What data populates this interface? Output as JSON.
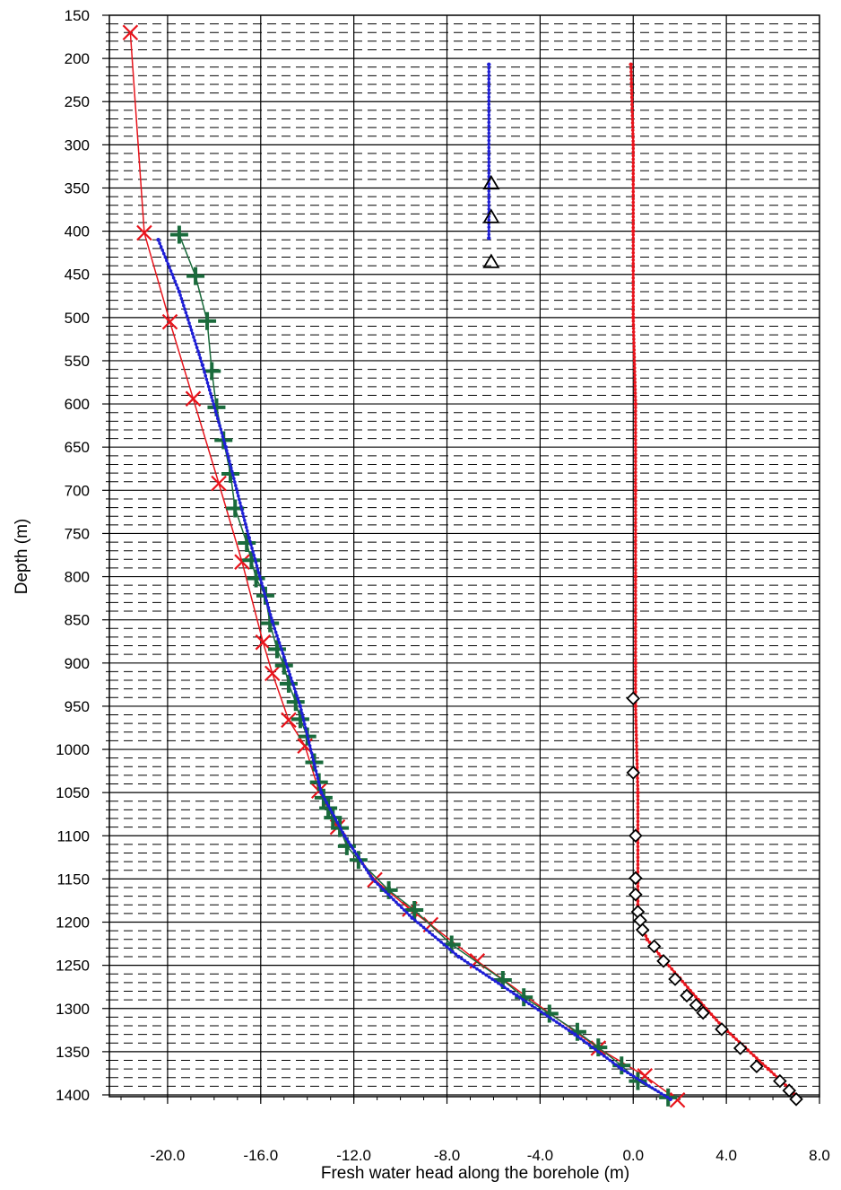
{
  "chart_data": {
    "type": "line",
    "xlabel": "Fresh water head along the borehole (m)",
    "ylabel": "Depth (m)",
    "xlim": [
      -22.5,
      8.0
    ],
    "ylim": [
      150,
      1400
    ],
    "y_inverted": true,
    "grid": true,
    "x_ticks": [
      -20.0,
      -16.0,
      -12.0,
      -8.0,
      -4.0,
      0.0,
      4.0,
      8.0
    ],
    "x_tick_labels": [
      "-20.0",
      "-16.0",
      "-12.0",
      "-8.0",
      "-4.0",
      "0.0",
      "4.0",
      "8.0"
    ],
    "y_ticks": [
      150,
      200,
      250,
      300,
      350,
      400,
      450,
      500,
      550,
      600,
      650,
      700,
      750,
      800,
      850,
      900,
      950,
      1000,
      1050,
      1100,
      1150,
      1200,
      1250,
      1300,
      1350,
      1400
    ],
    "series": [
      {
        "color": "#e8141c",
        "marker": "x",
        "points": [
          [
            -21.6,
            170
          ],
          [
            -21.0,
            402
          ],
          [
            -19.9,
            505
          ],
          [
            -18.9,
            594
          ],
          [
            -17.8,
            692
          ],
          [
            -16.8,
            783
          ],
          [
            -15.9,
            876
          ],
          [
            -15.5,
            912
          ],
          [
            -14.8,
            966
          ],
          [
            -14.1,
            996
          ],
          [
            -13.5,
            1048
          ],
          [
            -12.7,
            1090
          ],
          [
            -11.1,
            1151
          ],
          [
            -9.6,
            1185
          ],
          [
            -8.7,
            1203
          ],
          [
            -6.7,
            1245
          ],
          [
            -1.5,
            1346
          ],
          [
            0.5,
            1378
          ],
          [
            1.9,
            1406
          ]
        ]
      },
      {
        "color": "#1a6b3c",
        "marker": "+",
        "points": [
          [
            -19.5,
            404
          ],
          [
            -18.8,
            452
          ],
          [
            -18.3,
            504
          ],
          [
            -18.1,
            562
          ],
          [
            -17.9,
            604
          ],
          [
            -17.6,
            642
          ],
          [
            -17.3,
            681
          ],
          [
            -17.1,
            721
          ],
          [
            -16.6,
            761
          ],
          [
            -16.4,
            781
          ],
          [
            -16.2,
            802
          ],
          [
            -15.8,
            822
          ],
          [
            -15.6,
            854
          ],
          [
            -15.3,
            884
          ],
          [
            -15.0,
            903
          ],
          [
            -14.8,
            924
          ],
          [
            -14.5,
            945
          ],
          [
            -14.3,
            965
          ],
          [
            -14.0,
            985
          ],
          [
            -13.7,
            1015
          ],
          [
            -13.5,
            1038
          ],
          [
            -13.3,
            1056
          ],
          [
            -13.1,
            1068
          ],
          [
            -12.9,
            1079
          ],
          [
            -12.6,
            1091
          ],
          [
            -12.3,
            1112
          ],
          [
            -11.8,
            1128
          ],
          [
            -10.5,
            1163
          ],
          [
            -9.4,
            1186
          ],
          [
            -7.8,
            1226
          ],
          [
            -5.6,
            1267
          ],
          [
            -4.7,
            1287
          ],
          [
            -3.6,
            1306
          ],
          [
            -2.4,
            1327
          ],
          [
            -1.5,
            1345
          ],
          [
            -0.5,
            1366
          ],
          [
            0.2,
            1384
          ],
          [
            1.5,
            1403
          ]
        ]
      },
      {
        "color": "#1f1fd6",
        "marker": "dot",
        "points": [
          [
            -20.4,
            410
          ],
          [
            -19.5,
            470
          ],
          [
            -18.5,
            555
          ],
          [
            -17.5,
            650
          ],
          [
            -16.5,
            755
          ],
          [
            -15.5,
            852
          ],
          [
            -14.3,
            950
          ],
          [
            -13.4,
            1050
          ],
          [
            -12.4,
            1100
          ],
          [
            -11.2,
            1150
          ],
          [
            -9.5,
            1195
          ],
          [
            -7.5,
            1240
          ],
          [
            -5.0,
            1285
          ],
          [
            -2.5,
            1330
          ],
          [
            -0.5,
            1370
          ],
          [
            1.6,
            1405
          ]
        ]
      },
      {
        "color": "#1f1fd6",
        "marker": "dot",
        "points": [
          [
            -6.2,
            207
          ],
          [
            -6.2,
            408
          ]
        ]
      },
      {
        "color": "#000000",
        "marker": "triangle",
        "points": [
          [
            -6.1,
            345
          ],
          [
            -6.1,
            384
          ],
          [
            -6.1,
            436
          ]
        ]
      },
      {
        "color": "#e8141c",
        "marker": "dot",
        "points": [
          [
            -0.1,
            207
          ],
          [
            0.0,
            300
          ],
          [
            0.0,
            400
          ],
          [
            0.0,
            500
          ],
          [
            0.1,
            600
          ],
          [
            0.1,
            700
          ],
          [
            0.1,
            800
          ],
          [
            0.1,
            900
          ],
          [
            0.1,
            950
          ],
          [
            0.2,
            1050
          ],
          [
            0.2,
            1100
          ],
          [
            0.2,
            1150
          ],
          [
            0.2,
            1180
          ],
          [
            0.3,
            1200
          ],
          [
            0.6,
            1220
          ],
          [
            1.2,
            1240
          ],
          [
            2.0,
            1265
          ],
          [
            2.8,
            1290
          ],
          [
            3.8,
            1320
          ],
          [
            4.8,
            1345
          ],
          [
            5.8,
            1370
          ],
          [
            6.8,
            1395
          ],
          [
            7.1,
            1406
          ]
        ]
      },
      {
        "color": "#000000",
        "marker": "diamond",
        "points": [
          [
            0.0,
            941
          ],
          [
            0.0,
            1027
          ],
          [
            0.1,
            1100
          ],
          [
            0.1,
            1149
          ],
          [
            0.1,
            1168
          ],
          [
            0.2,
            1188
          ],
          [
            0.3,
            1198
          ],
          [
            0.4,
            1209
          ],
          [
            0.9,
            1228
          ],
          [
            1.3,
            1245
          ],
          [
            1.8,
            1266
          ],
          [
            2.3,
            1285
          ],
          [
            2.7,
            1296
          ],
          [
            3.0,
            1305
          ],
          [
            3.8,
            1324
          ],
          [
            4.6,
            1346
          ],
          [
            5.3,
            1367
          ],
          [
            6.3,
            1384
          ],
          [
            6.7,
            1395
          ],
          [
            7.0,
            1405
          ]
        ]
      }
    ]
  }
}
